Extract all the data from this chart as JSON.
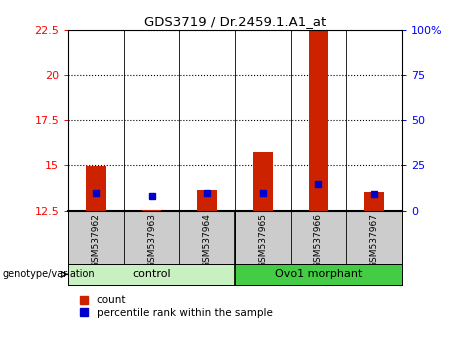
{
  "title": "GDS3719 / Dr.2459.1.A1_at",
  "samples": [
    "GSM537962",
    "GSM537963",
    "GSM537964",
    "GSM537965",
    "GSM537966",
    "GSM537967"
  ],
  "count_values": [
    14.95,
    12.55,
    13.65,
    15.75,
    22.5,
    13.55
  ],
  "percentile_values": [
    13.5,
    13.3,
    13.5,
    13.5,
    14.0,
    13.4
  ],
  "ylim_left": [
    12.5,
    22.5
  ],
  "ylim_right": [
    0,
    100
  ],
  "yticks_left": [
    12.5,
    15.0,
    17.5,
    20.0,
    22.5
  ],
  "ytick_labels_left": [
    "12.5",
    "15",
    "17.5",
    "20",
    "22.5"
  ],
  "yticks_right": [
    0,
    25,
    50,
    75,
    100
  ],
  "ytick_labels_right": [
    "0",
    "25",
    "50",
    "75",
    "100%"
  ],
  "count_color": "#CC2200",
  "percentile_color": "#0000CC",
  "legend_count": "count",
  "legend_percentile": "percentile rank within the sample",
  "xlabel_group": "genotype/variation",
  "group_control_color": "#c8f0c0",
  "group_morphant_color": "#44cc44",
  "sample_bg_color": "#cccccc",
  "base_value": 12.5,
  "bar_width": 0.35
}
